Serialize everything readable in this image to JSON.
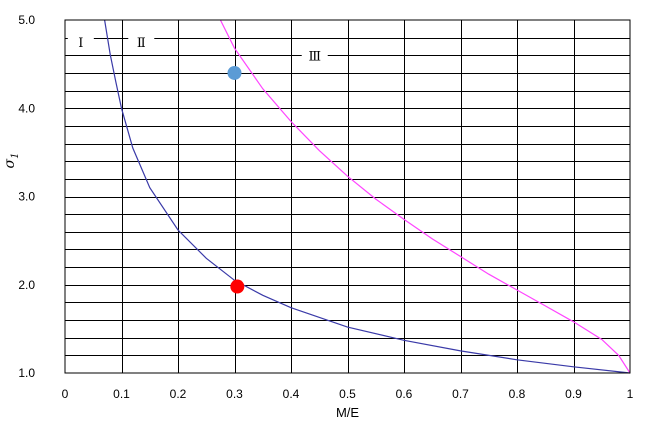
{
  "chart_data": {
    "type": "line",
    "xlabel": "M/E",
    "ylabel": "σ",
    "ylabel_sub": "1",
    "xlim": [
      0,
      1
    ],
    "ylim": [
      1.0,
      5.0
    ],
    "x_ticks": [
      0,
      0.1,
      0.2,
      0.3,
      0.4,
      0.5,
      0.6,
      0.7,
      0.8,
      0.9,
      1
    ],
    "x_tick_labels": [
      "0",
      "0.1",
      "0.2",
      "0.3",
      "0.4",
      "0.5",
      "0.6",
      "0.7",
      "0.8",
      "0.9",
      "1"
    ],
    "y_ticks": [
      1.0,
      2.0,
      3.0,
      4.0,
      5.0
    ],
    "y_tick_labels": [
      "1.0",
      "2.0",
      "3.0",
      "4.0",
      "5.0"
    ],
    "x_gridlines": [
      0.1,
      0.2,
      0.3,
      0.4,
      0.5,
      0.6,
      0.7,
      0.8,
      0.9
    ],
    "y_grid_step": 0.2,
    "series": [
      {
        "color": "#3a3aa8",
        "x": [
          0.07,
          0.08,
          0.09,
          0.1,
          0.12,
          0.15,
          0.2,
          0.25,
          0.3,
          0.35,
          0.4,
          0.5,
          0.6,
          0.7,
          0.8,
          0.9,
          1.0
        ],
        "y": [
          5.0,
          4.61,
          4.3,
          4.0,
          3.55,
          3.1,
          2.62,
          2.3,
          2.05,
          1.88,
          1.74,
          1.52,
          1.37,
          1.25,
          1.15,
          1.07,
          1.0
        ]
      },
      {
        "color": "#ff44ff",
        "x": [
          0.275,
          0.3,
          0.35,
          0.4,
          0.45,
          0.5,
          0.55,
          0.6,
          0.65,
          0.7,
          0.75,
          0.8,
          0.85,
          0.9,
          0.95,
          0.98,
          1.0
        ],
        "y": [
          5.0,
          4.68,
          4.22,
          3.85,
          3.52,
          3.23,
          2.97,
          2.74,
          2.52,
          2.32,
          2.12,
          1.94,
          1.76,
          1.58,
          1.38,
          1.2,
          1.0
        ]
      }
    ],
    "points": [
      {
        "x": 0.3,
        "y": 4.4,
        "color": "#5b9bd5"
      },
      {
        "x": 0.305,
        "y": 1.98,
        "color": "#ff0000"
      }
    ],
    "regions": [
      {
        "label": "Ⅰ",
        "x": 0.028,
        "y": 4.75
      },
      {
        "label": "Ⅱ",
        "x": 0.135,
        "y": 4.75
      },
      {
        "label": "Ⅲ",
        "x": 0.442,
        "y": 4.6
      }
    ]
  }
}
